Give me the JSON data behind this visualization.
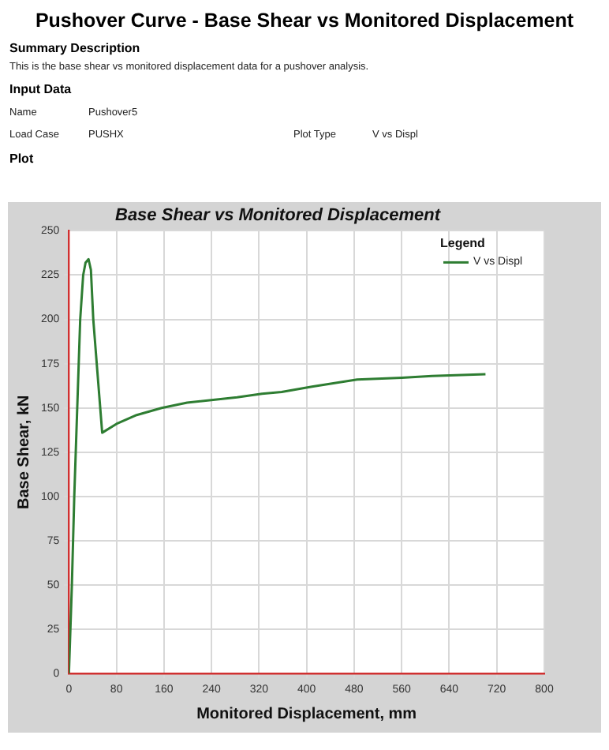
{
  "chart_data": {
    "type": "line",
    "title": "Pushover Curve - Base Shear vs Monitored Displacement",
    "subtitle": "Base Shear vs Monitored Displacement",
    "annotations": [
      "Summary Description",
      "This is the base shear vs monitored displacement data for a pushover analysis.",
      "Input Data",
      "Name",
      "Pushover5",
      "Load Case",
      "PUSHX",
      "Plot Type",
      "V vs Displ",
      "Plot"
    ],
    "xlabel": "Monitored Displacement, mm",
    "ylabel": "Base Shear, kN",
    "legend_title": "Legend",
    "x": [
      0,
      5,
      9,
      19,
      24,
      28,
      33,
      37,
      41,
      48,
      56,
      80,
      114,
      156,
      199,
      283,
      325,
      358,
      409,
      485,
      560,
      611,
      701
    ],
    "series": [
      {
        "name": "V vs Displ",
        "color": "#2e7d32",
        "values": [
          0,
          50,
          100,
          200,
          225,
          232,
          234,
          228,
          200,
          170,
          136,
          141,
          146,
          150,
          153,
          156,
          158,
          159,
          162,
          166,
          167,
          168,
          169
        ]
      }
    ],
    "xlim": [
      0,
      800
    ],
    "xticks": [
      0,
      80,
      160,
      240,
      320,
      400,
      480,
      560,
      640,
      720,
      800
    ],
    "ylim": [
      0,
      250
    ],
    "yticks": [
      0,
      25,
      50,
      75,
      100,
      125,
      150,
      175,
      200,
      225,
      250
    ],
    "grid": true,
    "legend": "top right",
    "marker": "none",
    "line_style": "solid"
  }
}
